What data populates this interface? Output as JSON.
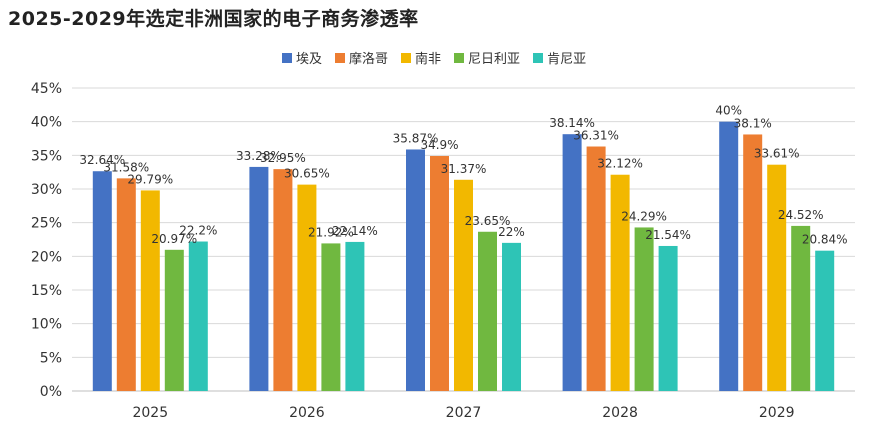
{
  "title": "2025-2029年选定非洲国家的电子商务渗透率",
  "chart_data": {
    "type": "bar",
    "title": "2025-2029年选定非洲国家的电子商务渗透率",
    "xlabel": "",
    "ylabel": "",
    "categories": [
      "2025",
      "2026",
      "2027",
      "2028",
      "2029"
    ],
    "ylim": [
      0,
      45
    ],
    "yticks": [
      "0%",
      "5%",
      "10%",
      "15%",
      "20%",
      "25%",
      "30%",
      "35%",
      "40%",
      "45%"
    ],
    "grid": true,
    "legend_position": "top",
    "series": [
      {
        "name": "埃及",
        "color": "#4472C4",
        "values": [
          32.64,
          33.28,
          35.87,
          38.14,
          40
        ],
        "labels": [
          "32.64%",
          "33.28%",
          "35.87%",
          "38.14%",
          "40%"
        ]
      },
      {
        "name": "摩洛哥",
        "color": "#ED7D31",
        "values": [
          31.58,
          32.95,
          34.9,
          36.31,
          38.1
        ],
        "labels": [
          "31.58%",
          "32.95%",
          "34.9%",
          "36.31%",
          "38.1%"
        ]
      },
      {
        "name": "南非",
        "color": "#F2B800",
        "values": [
          29.79,
          30.65,
          31.37,
          32.12,
          33.61
        ],
        "labels": [
          "29.79%",
          "30.65%",
          "31.37%",
          "32.12%",
          "33.61%"
        ]
      },
      {
        "name": "尼日利亚",
        "color": "#70B840",
        "values": [
          20.97,
          21.92,
          23.65,
          24.29,
          24.52
        ],
        "labels": [
          "20.97%",
          "21.92%",
          "23.65%",
          "24.29%",
          "24.52%"
        ]
      },
      {
        "name": "肯尼亚",
        "color": "#2EC4B6",
        "values": [
          22.2,
          22.14,
          22,
          21.54,
          20.84
        ],
        "labels": [
          "22.2%",
          "22.14%",
          "22%",
          "21.54%",
          "20.84%"
        ]
      }
    ]
  }
}
